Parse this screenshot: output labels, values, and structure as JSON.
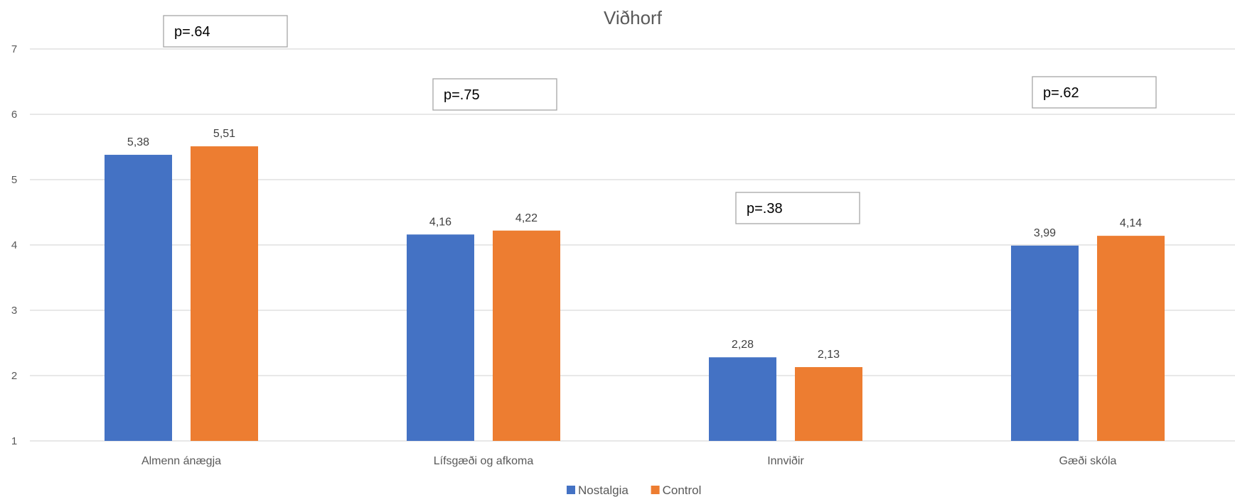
{
  "chart_data": {
    "type": "bar",
    "title": "Viðhorf",
    "xlabel": "",
    "ylabel": "",
    "categories": [
      "Almenn ánægja",
      "Lífsgæði og afkoma",
      "Innviðir",
      "Gæði skóla"
    ],
    "series": [
      {
        "name": "Nostalgia",
        "values": [
          5.38,
          4.16,
          2.28,
          3.99
        ],
        "labels": [
          "5,38",
          "4,16",
          "2,28",
          "3,99"
        ],
        "color": "#4472c4"
      },
      {
        "name": "Control",
        "values": [
          5.51,
          4.22,
          2.13,
          4.14
        ],
        "labels": [
          "5,51",
          "4,22",
          "2,13",
          "4,14"
        ],
        "color": "#ed7d31"
      }
    ],
    "ylim": [
      1,
      7
    ],
    "yticks": [
      "1",
      "2",
      "3",
      "4",
      "5",
      "6",
      "7"
    ],
    "grid": true,
    "legend_position": "bottom",
    "annotations": [
      "p=.64",
      "p=.75",
      "p=.38",
      "p=.62"
    ]
  }
}
